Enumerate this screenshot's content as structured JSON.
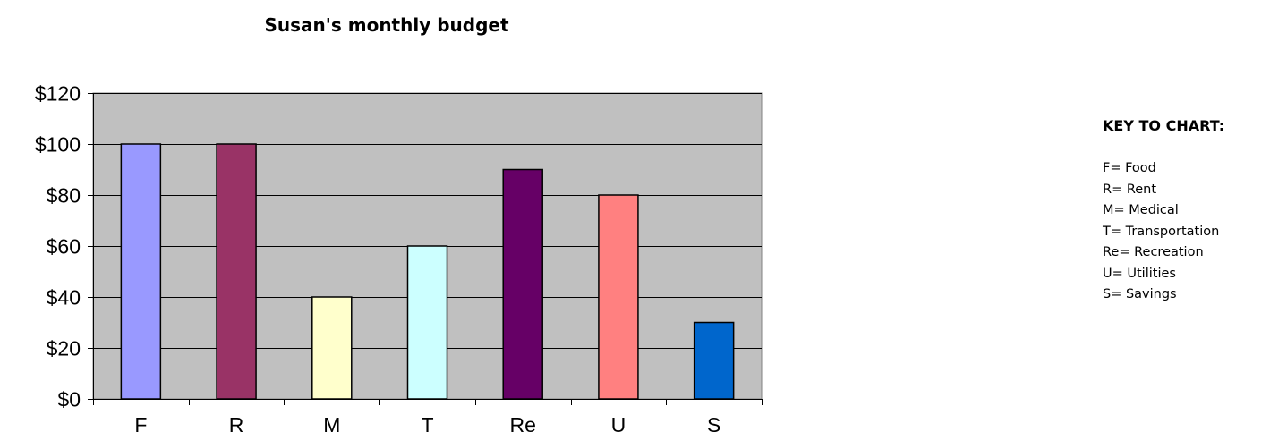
{
  "chart_data": {
    "type": "bar",
    "title": "Susan's monthly budget",
    "categories": [
      "F",
      "R",
      "M",
      "T",
      "Re",
      "U",
      "S"
    ],
    "values": [
      100,
      100,
      40,
      60,
      90,
      80,
      30
    ],
    "bar_colors": [
      "#9999ff",
      "#993366",
      "#ffffcc",
      "#ccffff",
      "#660066",
      "#ff8080",
      "#0066cc"
    ],
    "plot_background": "#c0c0c0",
    "ylim": [
      0,
      120
    ],
    "yticks": [
      0,
      20,
      40,
      60,
      80,
      100,
      120
    ],
    "ytick_labels": [
      "$0",
      "$20",
      "$40",
      "$60",
      "$80",
      "$100",
      "$120"
    ],
    "xlabel": "",
    "ylabel": "",
    "grid": true,
    "legend_position": "right"
  },
  "legend": {
    "title": "KEY TO CHART:",
    "items": [
      "F= Food",
      "R= Rent",
      "M= Medical",
      "T= Transportation",
      "Re= Recreation",
      "U= Utilities",
      "S= Savings"
    ]
  }
}
